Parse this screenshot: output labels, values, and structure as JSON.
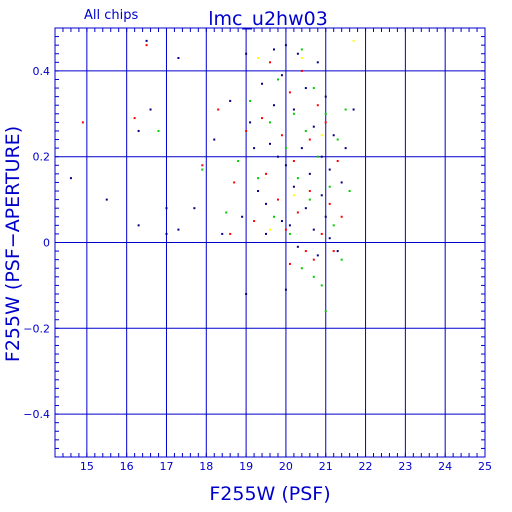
{
  "chart_data": {
    "type": "scatter",
    "title": "lmc_u2hw03",
    "subtitle": "All chips",
    "xlabel": "F255W (PSF)",
    "ylabel": "F255W (PSF−APERTURE)",
    "xlim": [
      14.2,
      25
    ],
    "ylim": [
      -0.5,
      0.5
    ],
    "xticks": [
      15,
      16,
      17,
      18,
      19,
      20,
      21,
      22,
      23,
      24,
      25
    ],
    "yticks": [
      -0.4,
      -0.2,
      0,
      0.2,
      0.4
    ],
    "ytick_labels": [
      "−0.4",
      "−0.2",
      "0",
      "0.2",
      "0.4"
    ],
    "grid": true,
    "colors": {
      "axis": "#0000cc",
      "chip1": "#000080",
      "chip2": "#ff0000",
      "chip3": "#00cc00",
      "chip4": "#ffff00"
    },
    "series": [
      {
        "color": "#000080",
        "points": [
          [
            14.6,
            0.15
          ],
          [
            15.5,
            0.1
          ],
          [
            16.3,
            0.26
          ],
          [
            16.3,
            0.04
          ],
          [
            16.5,
            0.47
          ],
          [
            16.6,
            0.31
          ],
          [
            17.0,
            0.02
          ],
          [
            17.0,
            0.08
          ],
          [
            17.3,
            0.43
          ],
          [
            17.3,
            0.03
          ],
          [
            17.7,
            0.08
          ],
          [
            18.2,
            0.24
          ],
          [
            18.4,
            0.02
          ],
          [
            18.6,
            0.33
          ],
          [
            18.9,
            0.06
          ],
          [
            19.0,
            0.44
          ],
          [
            19.0,
            -0.12
          ],
          [
            19.1,
            0.28
          ],
          [
            19.2,
            0.22
          ],
          [
            19.3,
            0.12
          ],
          [
            19.4,
            0.37
          ],
          [
            19.5,
            0.02
          ],
          [
            19.5,
            0.09
          ],
          [
            19.6,
            0.23
          ],
          [
            19.7,
            0.45
          ],
          [
            19.7,
            0.32
          ],
          [
            19.8,
            0.2
          ],
          [
            19.9,
            0.05
          ],
          [
            19.9,
            0.39
          ],
          [
            20.0,
            -0.11
          ],
          [
            20.0,
            0.46
          ],
          [
            20.0,
            0.18
          ],
          [
            20.1,
            0.04
          ],
          [
            20.2,
            0.13
          ],
          [
            20.2,
            0.31
          ],
          [
            20.3,
            0.44
          ],
          [
            20.3,
            -0.01
          ],
          [
            20.4,
            0.22
          ],
          [
            20.5,
            0.08
          ],
          [
            20.5,
            0.36
          ],
          [
            20.6,
            0.16
          ],
          [
            20.7,
            0.03
          ],
          [
            20.7,
            0.27
          ],
          [
            20.8,
            0.42
          ],
          [
            20.8,
            -0.03
          ],
          [
            20.9,
            0.11
          ],
          [
            20.9,
            0.2
          ],
          [
            21.0,
            0.06
          ],
          [
            21.0,
            0.34
          ],
          [
            21.1,
            0.17
          ],
          [
            21.1,
            0.01
          ],
          [
            21.2,
            0.25
          ],
          [
            21.3,
            -0.02
          ],
          [
            21.4,
            0.14
          ],
          [
            21.5,
            0.22
          ],
          [
            21.7,
            0.31
          ]
        ]
      },
      {
        "color": "#ff0000",
        "points": [
          [
            14.9,
            0.28
          ],
          [
            16.2,
            0.29
          ],
          [
            16.5,
            0.46
          ],
          [
            17.9,
            0.18
          ],
          [
            18.3,
            0.31
          ],
          [
            18.6,
            0.02
          ],
          [
            18.7,
            0.14
          ],
          [
            19.0,
            0.26
          ],
          [
            19.2,
            0.05
          ],
          [
            19.4,
            0.29
          ],
          [
            19.5,
            0.16
          ],
          [
            19.6,
            0.42
          ],
          [
            19.8,
            0.1
          ],
          [
            19.9,
            0.25
          ],
          [
            20.0,
            0.03
          ],
          [
            20.1,
            0.35
          ],
          [
            20.1,
            -0.05
          ],
          [
            20.2,
            0.19
          ],
          [
            20.3,
            0.07
          ],
          [
            20.4,
            0.4
          ],
          [
            20.5,
            -0.02
          ],
          [
            20.6,
            0.24
          ],
          [
            20.6,
            0.12
          ],
          [
            20.7,
            -0.04
          ],
          [
            20.8,
            0.32
          ],
          [
            20.9,
            0.02
          ],
          [
            21.0,
            0.28
          ],
          [
            21.1,
            0.09
          ],
          [
            21.2,
            -0.02
          ],
          [
            21.3,
            0.19
          ],
          [
            21.4,
            0.06
          ]
        ]
      },
      {
        "color": "#00cc00",
        "points": [
          [
            16.8,
            0.26
          ],
          [
            17.9,
            0.17
          ],
          [
            18.5,
            0.07
          ],
          [
            18.8,
            0.19
          ],
          [
            19.1,
            0.33
          ],
          [
            19.3,
            0.15
          ],
          [
            19.6,
            0.28
          ],
          [
            19.7,
            0.06
          ],
          [
            19.8,
            0.38
          ],
          [
            20.0,
            0.22
          ],
          [
            20.1,
            0.02
          ],
          [
            20.2,
            0.3
          ],
          [
            20.3,
            0.15
          ],
          [
            20.4,
            0.45
          ],
          [
            20.4,
            -0.06
          ],
          [
            20.5,
            0.26
          ],
          [
            20.6,
            0.1
          ],
          [
            20.7,
            -0.08
          ],
          [
            20.7,
            0.36
          ],
          [
            20.8,
            0.2
          ],
          [
            20.9,
            -0.1
          ],
          [
            21.0,
            0.3
          ],
          [
            21.0,
            -0.16
          ],
          [
            21.1,
            0.13
          ],
          [
            21.2,
            0.04
          ],
          [
            21.3,
            0.24
          ],
          [
            21.4,
            -0.04
          ],
          [
            21.5,
            0.31
          ],
          [
            21.6,
            0.12
          ]
        ]
      },
      {
        "color": "#ffff00",
        "points": [
          [
            19.3,
            0.43
          ],
          [
            19.6,
            0.03
          ],
          [
            20.2,
            0.11
          ],
          [
            20.4,
            0.43
          ],
          [
            20.9,
            0.25
          ],
          [
            21.7,
            0.47
          ]
        ]
      }
    ]
  }
}
